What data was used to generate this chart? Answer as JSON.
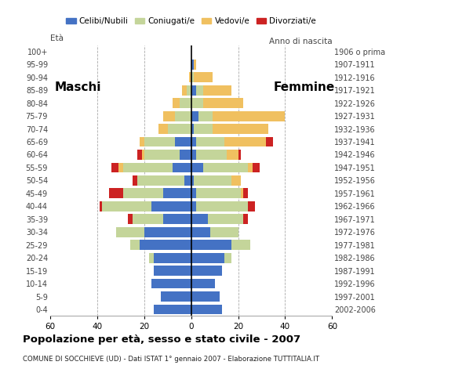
{
  "age_groups": [
    "0-4",
    "5-9",
    "10-14",
    "15-19",
    "20-24",
    "25-29",
    "30-34",
    "35-39",
    "40-44",
    "45-49",
    "50-54",
    "55-59",
    "60-64",
    "65-69",
    "70-74",
    "75-79",
    "80-84",
    "85-89",
    "90-94",
    "95-99",
    "100+"
  ],
  "birth_years": [
    "2002-2006",
    "1997-2001",
    "1992-1996",
    "1987-1991",
    "1982-1986",
    "1977-1981",
    "1972-1976",
    "1967-1971",
    "1962-1966",
    "1957-1961",
    "1952-1956",
    "1947-1951",
    "1942-1946",
    "1937-1941",
    "1932-1936",
    "1927-1931",
    "1922-1926",
    "1917-1921",
    "1912-1916",
    "1907-1911",
    "1906 o prima"
  ],
  "males": {
    "celibi": [
      16,
      13,
      17,
      16,
      16,
      22,
      20,
      12,
      17,
      12,
      3,
      8,
      5,
      7,
      0,
      0,
      0,
      0,
      0,
      0,
      0
    ],
    "coniugati": [
      0,
      0,
      0,
      0,
      2,
      4,
      12,
      13,
      21,
      17,
      20,
      21,
      15,
      13,
      10,
      7,
      5,
      2,
      0,
      0,
      0
    ],
    "vedovi": [
      0,
      0,
      0,
      0,
      0,
      0,
      0,
      0,
      0,
      0,
      0,
      2,
      1,
      2,
      4,
      5,
      3,
      2,
      1,
      0,
      0
    ],
    "divorziati": [
      0,
      0,
      0,
      0,
      0,
      0,
      0,
      2,
      1,
      6,
      2,
      3,
      2,
      0,
      0,
      0,
      0,
      0,
      0,
      0,
      0
    ]
  },
  "females": {
    "nubili": [
      13,
      12,
      10,
      13,
      14,
      17,
      8,
      7,
      2,
      2,
      1,
      5,
      2,
      2,
      1,
      3,
      0,
      2,
      0,
      1,
      0
    ],
    "coniugate": [
      0,
      0,
      0,
      0,
      3,
      8,
      12,
      15,
      22,
      19,
      16,
      19,
      13,
      12,
      8,
      6,
      5,
      3,
      1,
      0,
      0
    ],
    "vedove": [
      0,
      0,
      0,
      0,
      0,
      0,
      0,
      0,
      0,
      1,
      4,
      2,
      5,
      18,
      24,
      31,
      17,
      12,
      8,
      1,
      0
    ],
    "divorziate": [
      0,
      0,
      0,
      0,
      0,
      0,
      0,
      2,
      3,
      2,
      0,
      3,
      1,
      3,
      0,
      0,
      0,
      0,
      0,
      0,
      0
    ]
  },
  "colors": {
    "celibi": "#4472C4",
    "coniugati": "#C4D59A",
    "vedovi": "#F0C060",
    "divorziati": "#CC2222"
  },
  "xlim": 60,
  "title": "Popolazione per età, sesso e stato civile - 2007",
  "subtitle": "COMUNE DI SOCCHIEVE (UD) - Dati ISTAT 1° gennaio 2007 - Elaborazione TUTTITALIA.IT",
  "maschi_label": "Maschi",
  "femmine_label": "Femmine",
  "eta_label": "Età",
  "anno_label": "Anno di nascita",
  "legend_labels": [
    "Celibi/Nubili",
    "Coniugati/e",
    "Vedovi/e",
    "Divorziati/e"
  ]
}
